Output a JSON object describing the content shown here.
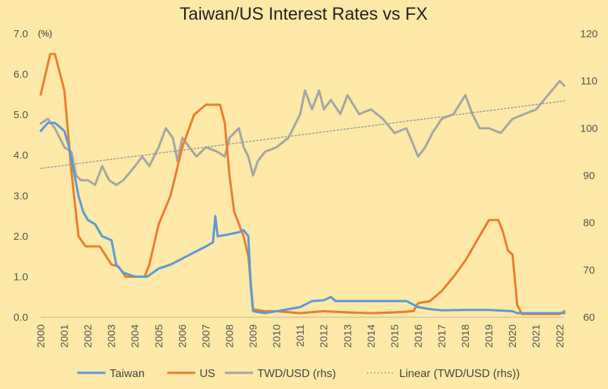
{
  "chart_data": {
    "type": "line",
    "title": "Taiwan/US Interest Rates vs FX",
    "y_left_unit": "(%)",
    "y_left_range": [
      0,
      7
    ],
    "y_left_ticks": [
      "0.0",
      "1.0",
      "2.0",
      "3.0",
      "4.0",
      "5.0",
      "6.0",
      "7.0"
    ],
    "y_right_range": [
      60,
      120
    ],
    "y_right_ticks": [
      "60",
      "70",
      "80",
      "90",
      "100",
      "110",
      "120"
    ],
    "x_range": [
      2000,
      2022.2
    ],
    "x_ticks": [
      "2000",
      "2001",
      "2002",
      "2003",
      "2004",
      "2005",
      "2006",
      "2007",
      "2008",
      "2009",
      "2010",
      "2011",
      "2012",
      "2013",
      "2014",
      "2015",
      "2016",
      "2017",
      "2018",
      "2019",
      "2020",
      "2021",
      "2022"
    ],
    "grid": false,
    "legend_position": "bottom",
    "colors": {
      "background": "#FFE9A8",
      "taiwan": "#5B9BD5",
      "us": "#ED7D31",
      "twd_usd": "#A5A5A5",
      "linear": "#999999"
    },
    "series": [
      {
        "name": "Taiwan",
        "axis": "left",
        "x": [
          2000.0,
          2000.3,
          2000.6,
          2001.0,
          2001.2,
          2001.4,
          2001.6,
          2001.8,
          2002.0,
          2002.3,
          2002.6,
          2003.0,
          2003.2,
          2003.5,
          2004.0,
          2004.5,
          2005.0,
          2005.5,
          2006.0,
          2006.5,
          2007.0,
          2007.3,
          2007.4,
          2007.5,
          2008.0,
          2008.4,
          2008.6,
          2008.8,
          2008.9,
          2009.0,
          2009.5,
          2010.0,
          2010.5,
          2011.0,
          2011.5,
          2012.0,
          2012.3,
          2012.5,
          2013.0,
          2014.0,
          2015.0,
          2015.5,
          2016.0,
          2016.5,
          2017.0,
          2018.0,
          2019.0,
          2020.0,
          2020.2,
          2020.3,
          2021.0,
          2022.0,
          2022.2
        ],
        "values": [
          4.6,
          4.8,
          4.8,
          4.6,
          4.2,
          3.6,
          3.0,
          2.6,
          2.4,
          2.3,
          2.0,
          1.9,
          1.3,
          1.1,
          1.0,
          1.0,
          1.2,
          1.3,
          1.45,
          1.6,
          1.75,
          1.85,
          2.5,
          2.0,
          2.05,
          2.1,
          2.15,
          2.0,
          0.8,
          0.15,
          0.1,
          0.15,
          0.2,
          0.25,
          0.4,
          0.42,
          0.5,
          0.4,
          0.4,
          0.4,
          0.4,
          0.4,
          0.25,
          0.2,
          0.17,
          0.18,
          0.18,
          0.15,
          0.1,
          0.1,
          0.1,
          0.1,
          0.1
        ]
      },
      {
        "name": "US",
        "axis": "left",
        "x": [
          2000.0,
          2000.2,
          2000.4,
          2000.6,
          2001.0,
          2001.3,
          2001.6,
          2001.9,
          2002.0,
          2002.5,
          2003.0,
          2003.3,
          2003.6,
          2004.0,
          2004.4,
          2004.6,
          2005.0,
          2005.5,
          2006.0,
          2006.5,
          2007.0,
          2007.6,
          2007.8,
          2008.0,
          2008.2,
          2008.6,
          2008.8,
          2009.0,
          2009.5,
          2010.0,
          2011.0,
          2012.0,
          2013.0,
          2014.0,
          2015.0,
          2015.8,
          2016.0,
          2016.5,
          2017.0,
          2017.5,
          2018.0,
          2018.5,
          2019.0,
          2019.4,
          2019.6,
          2019.8,
          2020.0,
          2020.2,
          2020.4,
          2021.0,
          2022.0,
          2022.2
        ],
        "values": [
          5.5,
          6.0,
          6.5,
          6.5,
          5.6,
          3.6,
          2.0,
          1.75,
          1.75,
          1.75,
          1.3,
          1.25,
          1.0,
          1.0,
          1.0,
          1.3,
          2.3,
          3.0,
          4.2,
          5.0,
          5.25,
          5.25,
          4.8,
          3.5,
          2.6,
          2.0,
          1.5,
          0.2,
          0.15,
          0.15,
          0.1,
          0.15,
          0.12,
          0.1,
          0.12,
          0.15,
          0.35,
          0.4,
          0.65,
          1.0,
          1.4,
          1.9,
          2.4,
          2.4,
          2.1,
          1.65,
          1.55,
          0.3,
          0.08,
          0.08,
          0.08,
          0.15
        ]
      },
      {
        "name": "TWD/USD (rhs)",
        "axis": "right",
        "x": [
          2000.0,
          2000.3,
          2000.6,
          2001.0,
          2001.3,
          2001.5,
          2001.7,
          2002.0,
          2002.3,
          2002.6,
          2002.9,
          2003.2,
          2003.5,
          2004.0,
          2004.3,
          2004.6,
          2005.0,
          2005.3,
          2005.6,
          2005.8,
          2006.0,
          2006.3,
          2006.6,
          2007.0,
          2007.5,
          2007.8,
          2008.0,
          2008.4,
          2008.6,
          2008.8,
          2009.0,
          2009.2,
          2009.5,
          2010.0,
          2010.5,
          2011.0,
          2011.2,
          2011.5,
          2011.8,
          2012.0,
          2012.3,
          2012.7,
          2013.0,
          2013.5,
          2014.0,
          2014.5,
          2015.0,
          2015.5,
          2016.0,
          2016.3,
          2016.6,
          2017.0,
          2017.5,
          2018.0,
          2018.3,
          2018.6,
          2019.0,
          2019.5,
          2020.0,
          2020.5,
          2021.0,
          2021.5,
          2022.0,
          2022.2
        ],
        "values": [
          101,
          102,
          100,
          96,
          95,
          90,
          89,
          89,
          88,
          92,
          89,
          88,
          89,
          92,
          94,
          92,
          96,
          100,
          98,
          93,
          98,
          96,
          94,
          96,
          95,
          94,
          98,
          100,
          96,
          94,
          90,
          93,
          95,
          96,
          98,
          103,
          108,
          104,
          108,
          104,
          106,
          103,
          107,
          103,
          104,
          102,
          99,
          100,
          94,
          96,
          99,
          102,
          103,
          107,
          103,
          100,
          100,
          99,
          102,
          103,
          104,
          107,
          110,
          109
        ]
      },
      {
        "name": "Linear (TWD/USD (rhs))",
        "axis": "right",
        "style": "dotted",
        "x": [
          2000.0,
          2022.2
        ],
        "values": [
          91.5,
          105.8
        ]
      }
    ]
  }
}
